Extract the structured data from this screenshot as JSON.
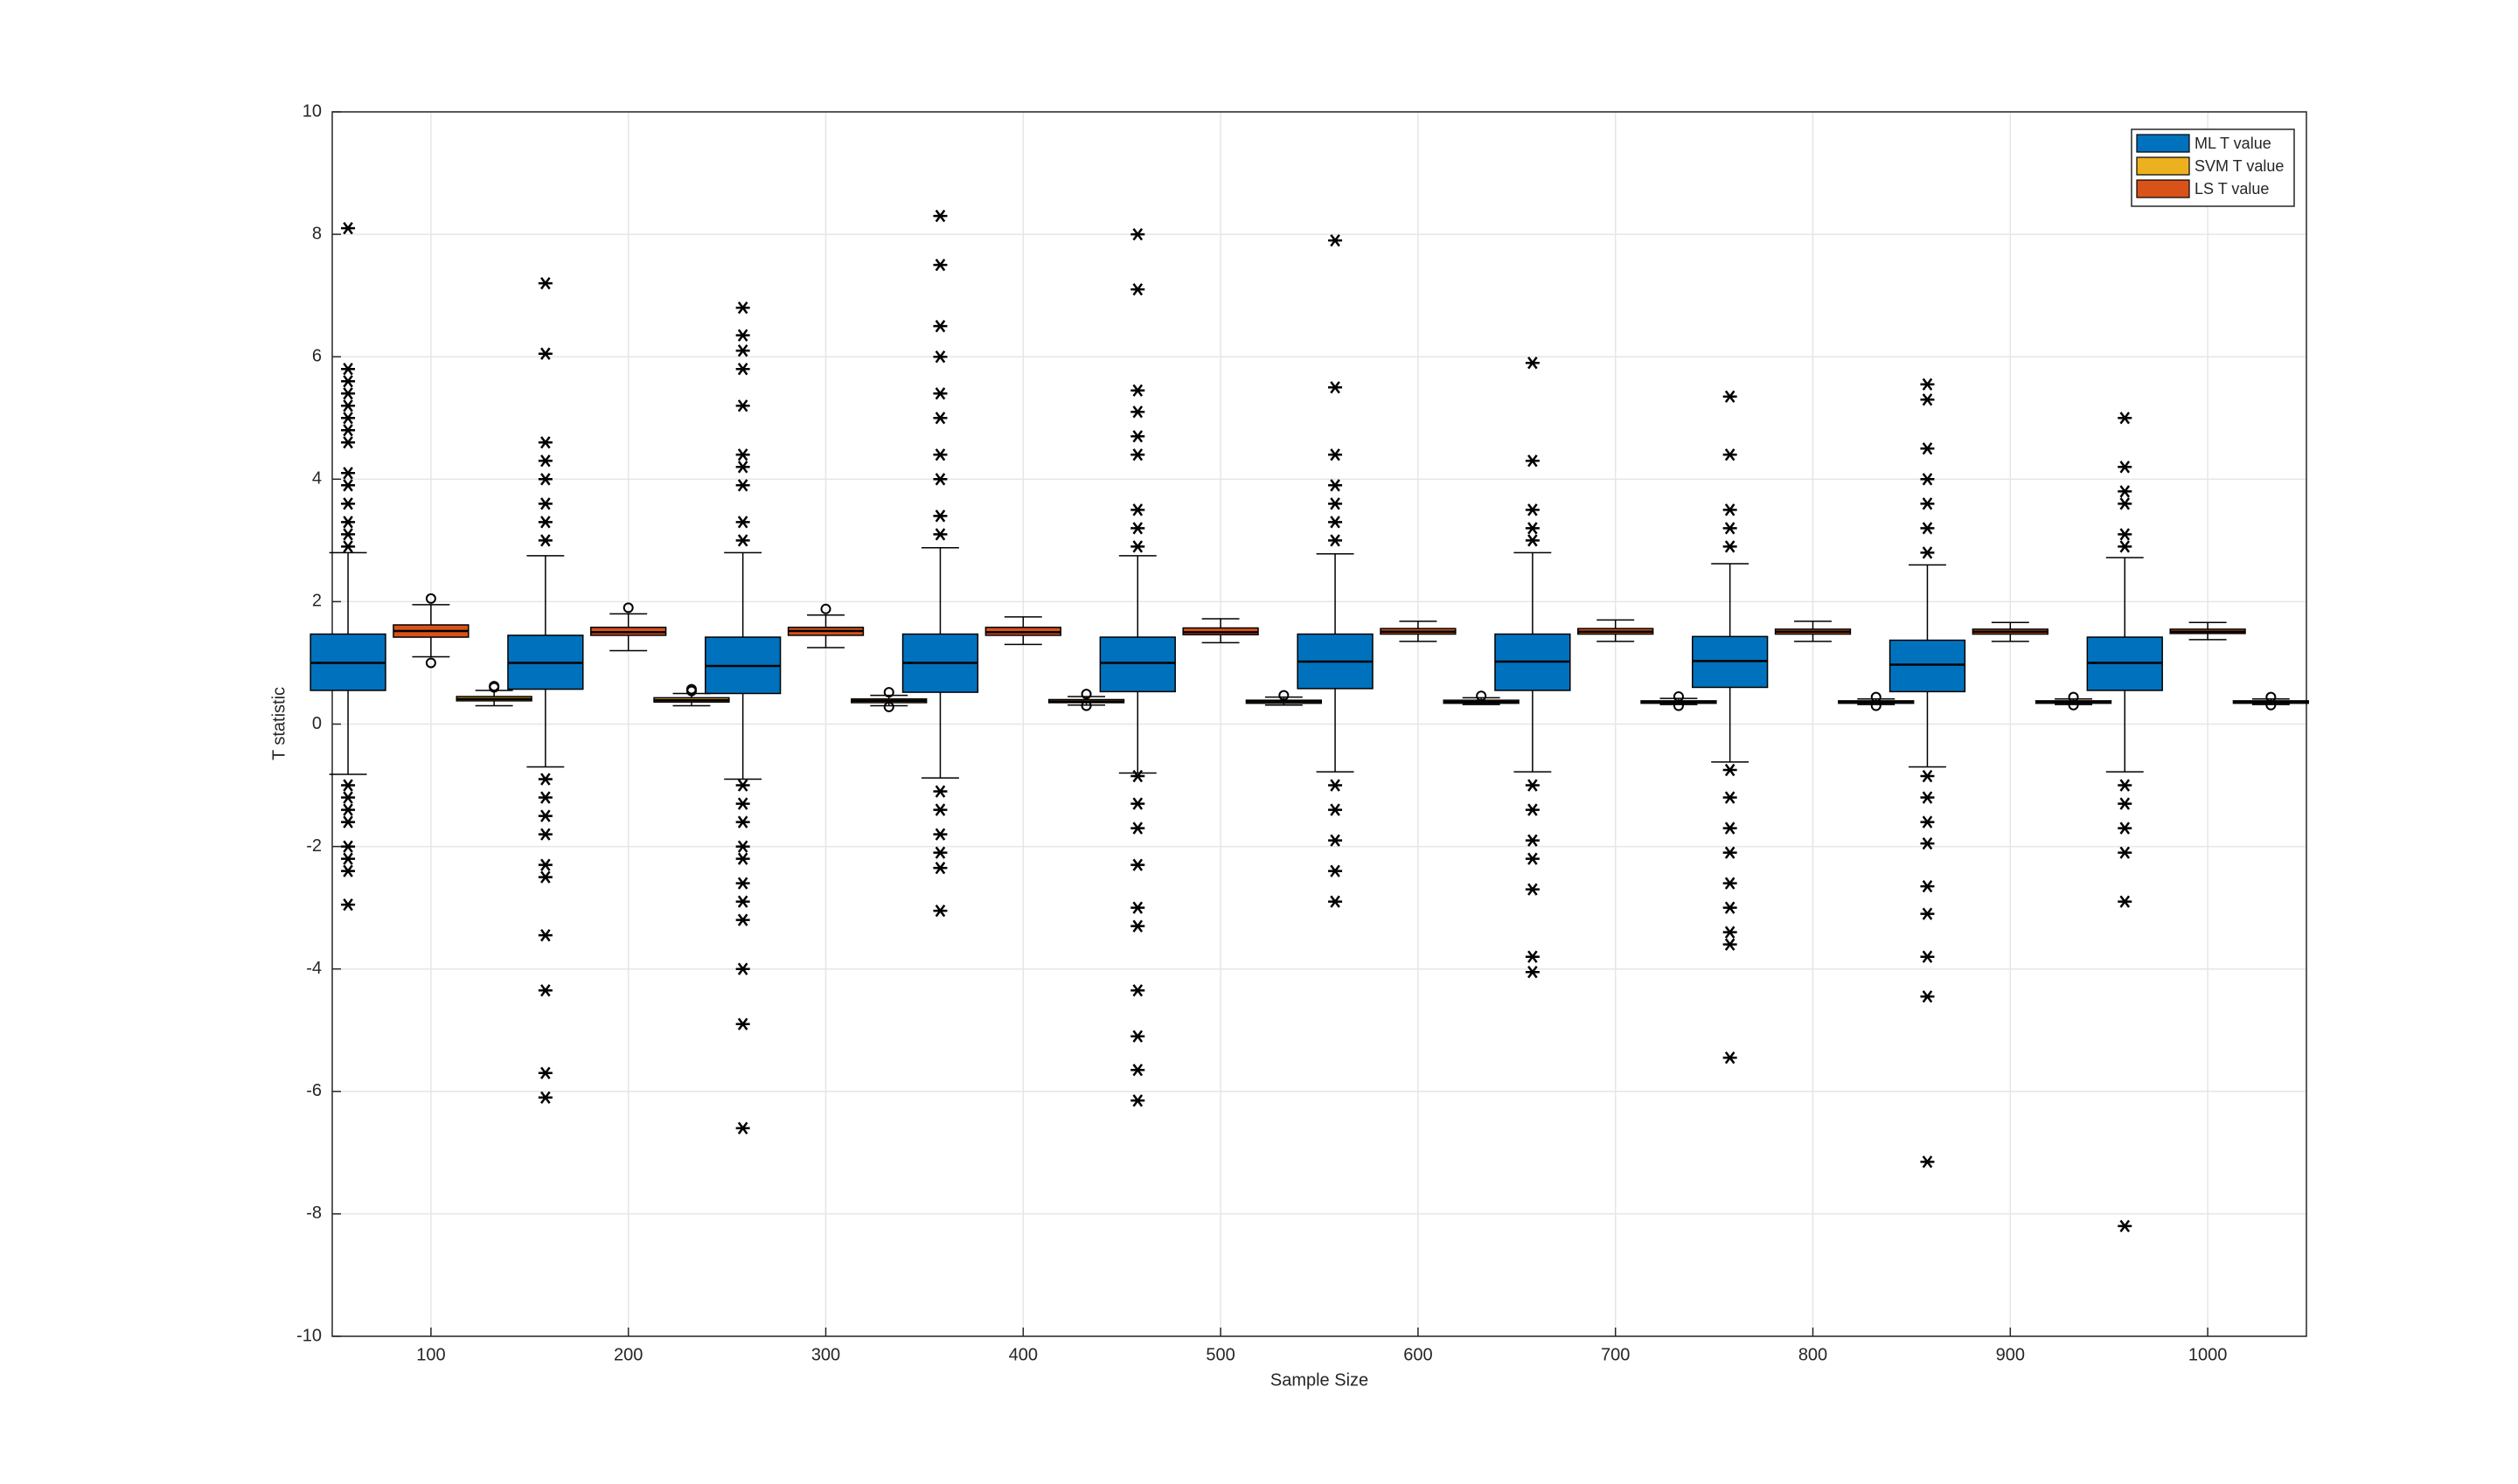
{
  "chart_data": {
    "type": "box",
    "x_label": "Sample Size",
    "y_label": "T statistic",
    "categories": [
      "100",
      "200",
      "300",
      "400",
      "500",
      "600",
      "700",
      "800",
      "900",
      "1000"
    ],
    "ylim": [
      -10,
      10
    ],
    "yticks": [
      -10,
      -8,
      -6,
      -4,
      -2,
      0,
      2,
      4,
      6,
      8,
      10
    ],
    "grid": true,
    "legend": "top-right",
    "series": [
      {
        "name": "ML T value",
        "color": "#0072BD",
        "boxes": [
          {
            "low": -0.82,
            "q1": 0.55,
            "median": 1.0,
            "q3": 1.47,
            "high": 2.8,
            "outliers": [
              8.1,
              5.8,
              5.6,
              5.4,
              5.2,
              5.0,
              4.8,
              4.6,
              4.1,
              3.9,
              3.6,
              3.3,
              3.1,
              2.9,
              -1.0,
              -1.2,
              -1.4,
              -1.6,
              -2.0,
              -2.2,
              -2.4,
              -2.95
            ]
          },
          {
            "low": -0.7,
            "q1": 0.57,
            "median": 1.0,
            "q3": 1.45,
            "high": 2.75,
            "outliers": [
              7.2,
              6.05,
              4.6,
              4.3,
              4.0,
              3.6,
              3.3,
              3.0,
              -0.9,
              -1.2,
              -1.5,
              -1.8,
              -2.3,
              -2.5,
              -3.45,
              -4.35,
              -5.7,
              -6.1
            ]
          },
          {
            "low": -0.9,
            "q1": 0.5,
            "median": 0.95,
            "q3": 1.42,
            "high": 2.8,
            "outliers": [
              6.8,
              6.35,
              6.1,
              5.8,
              5.2,
              4.4,
              4.2,
              3.9,
              3.3,
              3.0,
              -1.0,
              -1.3,
              -1.6,
              -2.0,
              -2.2,
              -2.6,
              -2.9,
              -3.2,
              -4.0,
              -4.9,
              -6.6
            ]
          },
          {
            "low": -0.88,
            "q1": 0.52,
            "median": 1.0,
            "q3": 1.47,
            "high": 2.88,
            "outliers": [
              8.3,
              7.5,
              6.5,
              6.0,
              5.4,
              5.0,
              4.4,
              4.0,
              3.4,
              3.1,
              -1.1,
              -1.4,
              -1.8,
              -2.1,
              -2.35,
              -3.05
            ]
          },
          {
            "low": -0.8,
            "q1": 0.53,
            "median": 1.0,
            "q3": 1.42,
            "high": 2.75,
            "outliers": [
              8.0,
              7.1,
              5.45,
              5.1,
              4.7,
              4.4,
              3.5,
              3.2,
              2.9,
              -0.85,
              -1.3,
              -1.7,
              -2.3,
              -3.0,
              -3.3,
              -4.35,
              -5.1,
              -5.65,
              -6.15
            ]
          },
          {
            "low": -0.78,
            "q1": 0.58,
            "median": 1.02,
            "q3": 1.47,
            "high": 2.78,
            "outliers": [
              7.9,
              5.5,
              4.4,
              3.9,
              3.6,
              3.3,
              3.0,
              -1.0,
              -1.4,
              -1.9,
              -2.4,
              -2.9
            ]
          },
          {
            "low": -0.78,
            "q1": 0.55,
            "median": 1.02,
            "q3": 1.47,
            "high": 2.8,
            "outliers": [
              5.9,
              4.3,
              3.5,
              3.2,
              3.0,
              -1.0,
              -1.4,
              -1.9,
              -2.2,
              -2.7,
              -3.8,
              -4.05
            ]
          },
          {
            "low": -0.62,
            "q1": 0.6,
            "median": 1.03,
            "q3": 1.43,
            "high": 2.62,
            "outliers": [
              5.35,
              4.4,
              3.5,
              3.2,
              2.9,
              -0.75,
              -1.2,
              -1.7,
              -2.1,
              -2.6,
              -3.0,
              -3.4,
              -3.6,
              -5.45
            ]
          },
          {
            "low": -0.7,
            "q1": 0.53,
            "median": 0.97,
            "q3": 1.37,
            "high": 2.6,
            "outliers": [
              5.55,
              5.3,
              4.5,
              4.0,
              3.6,
              3.2,
              2.8,
              -0.85,
              -1.2,
              -1.6,
              -1.95,
              -2.65,
              -3.1,
              -3.8,
              -4.45,
              -7.15
            ]
          },
          {
            "low": -0.78,
            "q1": 0.55,
            "median": 1.0,
            "q3": 1.42,
            "high": 2.72,
            "outliers": [
              5.0,
              4.2,
              3.8,
              3.6,
              3.1,
              2.9,
              -1.0,
              -1.3,
              -1.7,
              -2.1,
              -2.9,
              -8.2
            ]
          }
        ]
      },
      {
        "name": "SVM T value",
        "color": "#EDB120",
        "boxes": [
          {
            "low": 0.3,
            "q1": 0.38,
            "median": 0.41,
            "q3": 0.45,
            "high": 0.55,
            "outliers": [
              0.62,
              0.6
            ]
          },
          {
            "low": 0.3,
            "q1": 0.36,
            "median": 0.39,
            "q3": 0.43,
            "high": 0.5,
            "outliers": [
              0.57,
              0.54
            ]
          },
          {
            "low": 0.3,
            "q1": 0.35,
            "median": 0.38,
            "q3": 0.41,
            "high": 0.47,
            "outliers": [
              0.52,
              0.28
            ]
          },
          {
            "low": 0.31,
            "q1": 0.35,
            "median": 0.37,
            "q3": 0.4,
            "high": 0.45,
            "outliers": [
              0.49,
              0.3
            ]
          },
          {
            "low": 0.31,
            "q1": 0.34,
            "median": 0.37,
            "q3": 0.39,
            "high": 0.44,
            "outliers": [
              0.47
            ]
          },
          {
            "low": 0.32,
            "q1": 0.34,
            "median": 0.36,
            "q3": 0.39,
            "high": 0.43,
            "outliers": [
              0.46
            ]
          },
          {
            "low": 0.32,
            "q1": 0.34,
            "median": 0.36,
            "q3": 0.38,
            "high": 0.42,
            "outliers": [
              0.45,
              0.3
            ]
          },
          {
            "low": 0.32,
            "q1": 0.34,
            "median": 0.36,
            "q3": 0.38,
            "high": 0.41,
            "outliers": [
              0.44,
              0.3
            ]
          },
          {
            "low": 0.32,
            "q1": 0.34,
            "median": 0.36,
            "q3": 0.38,
            "high": 0.41,
            "outliers": [
              0.44,
              0.31
            ]
          },
          {
            "low": 0.32,
            "q1": 0.34,
            "median": 0.36,
            "q3": 0.38,
            "high": 0.41,
            "outliers": [
              0.44,
              0.31
            ]
          }
        ]
      },
      {
        "name": "LS T value",
        "color": "#D95319",
        "boxes": [
          {
            "low": 1.1,
            "q1": 1.42,
            "median": 1.52,
            "q3": 1.62,
            "high": 1.95,
            "outliers": [
              2.05,
              1.0
            ]
          },
          {
            "low": 1.2,
            "q1": 1.45,
            "median": 1.5,
            "q3": 1.58,
            "high": 1.8,
            "outliers": [
              1.9
            ]
          },
          {
            "low": 1.25,
            "q1": 1.45,
            "median": 1.52,
            "q3": 1.58,
            "high": 1.78,
            "outliers": [
              1.88
            ]
          },
          {
            "low": 1.3,
            "q1": 1.45,
            "median": 1.5,
            "q3": 1.58,
            "high": 1.75,
            "outliers": []
          },
          {
            "low": 1.33,
            "q1": 1.46,
            "median": 1.5,
            "q3": 1.57,
            "high": 1.72,
            "outliers": []
          },
          {
            "low": 1.35,
            "q1": 1.47,
            "median": 1.51,
            "q3": 1.56,
            "high": 1.68,
            "outliers": []
          },
          {
            "low": 1.35,
            "q1": 1.47,
            "median": 1.51,
            "q3": 1.56,
            "high": 1.7,
            "outliers": []
          },
          {
            "low": 1.35,
            "q1": 1.47,
            "median": 1.51,
            "q3": 1.55,
            "high": 1.68,
            "outliers": []
          },
          {
            "low": 1.35,
            "q1": 1.47,
            "median": 1.51,
            "q3": 1.55,
            "high": 1.66,
            "outliers": []
          },
          {
            "low": 1.38,
            "q1": 1.48,
            "median": 1.51,
            "q3": 1.55,
            "high": 1.66,
            "outliers": []
          }
        ]
      }
    ]
  }
}
